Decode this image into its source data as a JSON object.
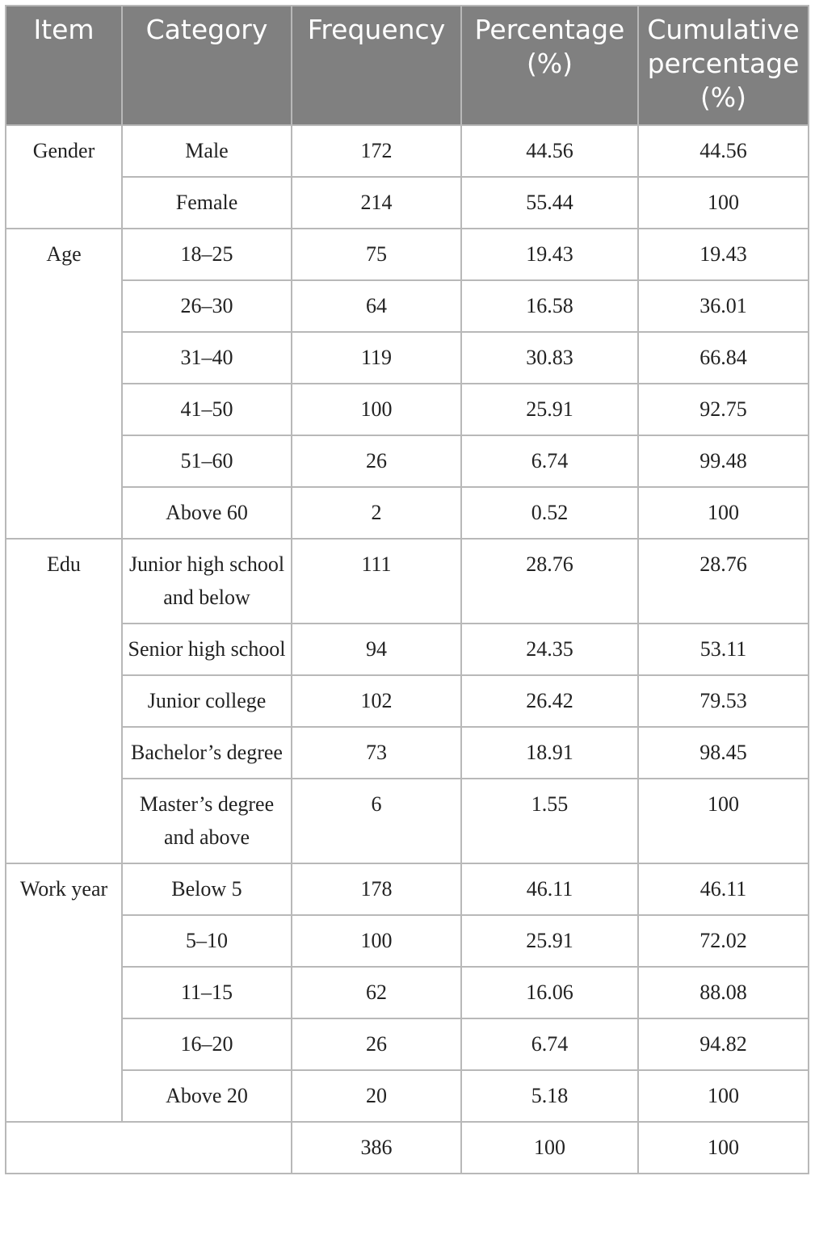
{
  "table": {
    "header": [
      "Item",
      "Category",
      "Frequency",
      "Percentage (%)",
      "Cumulative percentage (%)"
    ],
    "groups": [
      {
        "item": "Gender",
        "rows": [
          [
            "Male",
            172,
            44.56,
            44.56
          ],
          [
            "Female",
            214,
            55.44,
            100
          ]
        ]
      },
      {
        "item": "Age",
        "rows": [
          [
            "18–25",
            75,
            19.43,
            19.43
          ],
          [
            "26–30",
            64,
            16.58,
            36.01
          ],
          [
            "31–40",
            119,
            30.83,
            66.84
          ],
          [
            "41–50",
            100,
            25.91,
            92.75
          ],
          [
            "51–60",
            26,
            6.74,
            99.48
          ],
          [
            "Above 60",
            2,
            0.52,
            100
          ]
        ]
      },
      {
        "item": "Edu",
        "rows": [
          [
            "Junior high school and below",
            111,
            28.76,
            28.76
          ],
          [
            "Senior high school",
            94,
            24.35,
            53.11
          ],
          [
            "Junior college",
            102,
            26.42,
            79.53
          ],
          [
            "Bachelor’s degree",
            73,
            18.91,
            98.45
          ],
          [
            "Master’s degree and above",
            6,
            1.55,
            100
          ]
        ]
      },
      {
        "item": "Work year",
        "rows": [
          [
            "Below 5",
            178,
            46.11,
            46.11
          ],
          [
            "5–10",
            100,
            25.91,
            72.02
          ],
          [
            "11–15",
            62,
            16.06,
            88.08
          ],
          [
            "16–20",
            26,
            6.74,
            94.82
          ],
          [
            "Above 20",
            20,
            5.18,
            100
          ]
        ]
      }
    ],
    "total": [
      386,
      100,
      100
    ]
  }
}
